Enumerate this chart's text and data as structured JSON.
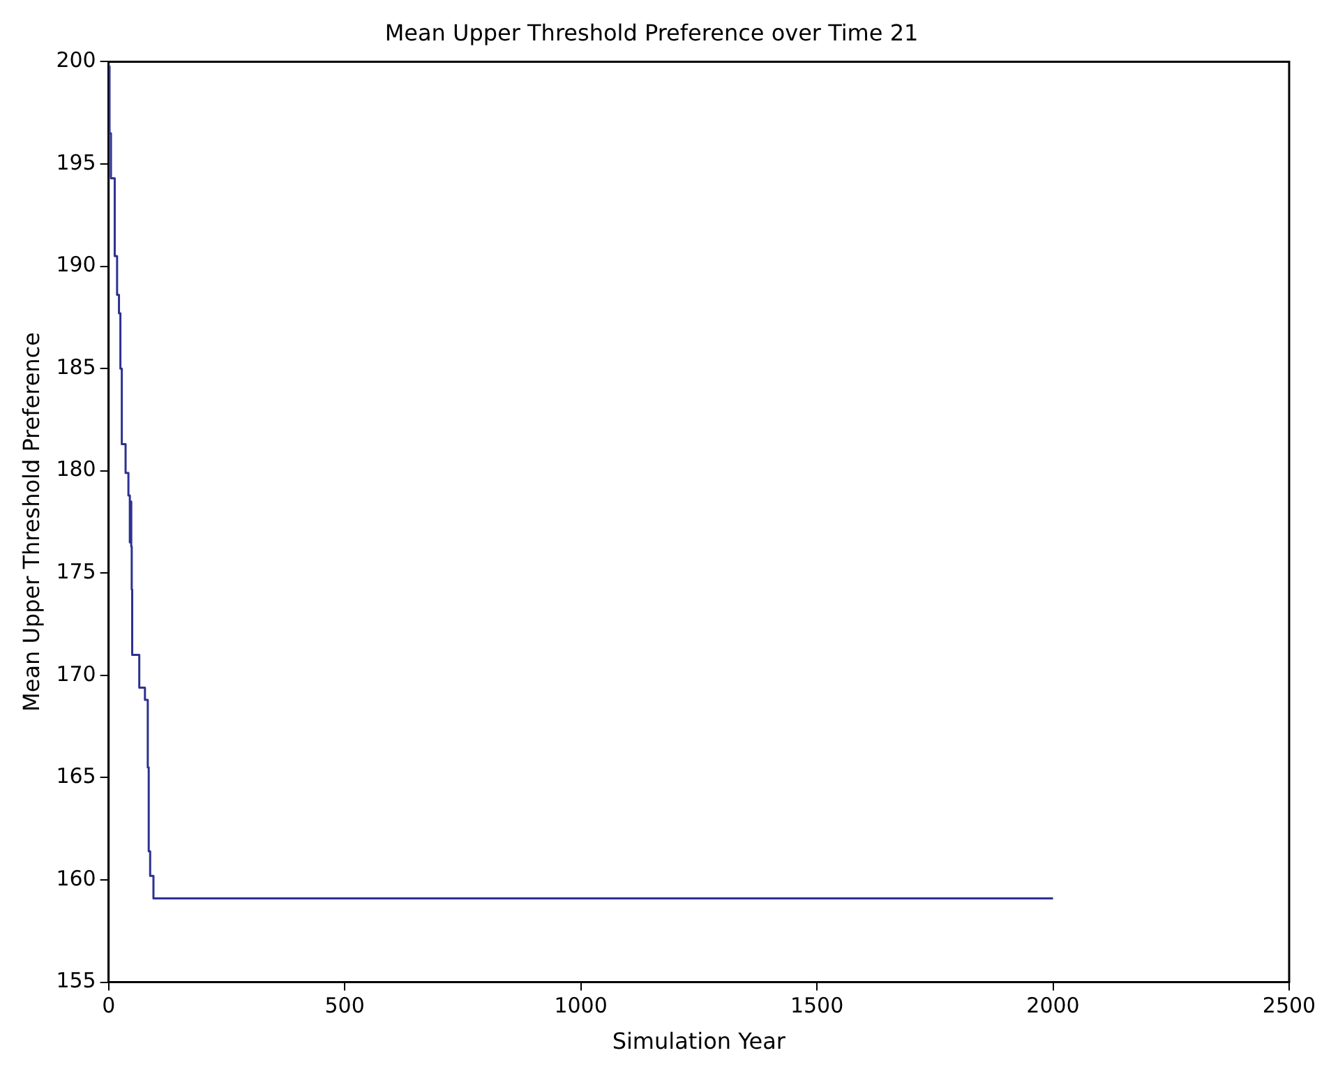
{
  "chart_data": {
    "type": "step",
    "title": "Mean Upper Threshold Preference over Time 21",
    "xlabel": "Simulation Year",
    "ylabel": "Mean Upper Threshold Preference",
    "series": [
      {
        "color": "#2e3192",
        "x": [
          2,
          5,
          13,
          18,
          22,
          25,
          28,
          36,
          42,
          45,
          47,
          48,
          49,
          50,
          65,
          77,
          83,
          85,
          88,
          95,
          98,
          2000
        ],
        "values": [
          199.8,
          196.5,
          194.3,
          190.5,
          188.6,
          187.7,
          185,
          181.3,
          179.9,
          178.8,
          176.5,
          178.5,
          176.3,
          174.2,
          171.0,
          169.4,
          168.8,
          165.5,
          161.4,
          160.2,
          159.1,
          159.1
        ]
      }
    ],
    "xlim": [
      0,
      2500
    ],
    "xticks": [
      0,
      500,
      1000,
      1500,
      2000,
      2500
    ],
    "ylim": [
      155,
      200
    ],
    "yticks": [
      155,
      160,
      165,
      170,
      175,
      180,
      185,
      190,
      195,
      200
    ],
    "grid": false,
    "legend": false
  }
}
